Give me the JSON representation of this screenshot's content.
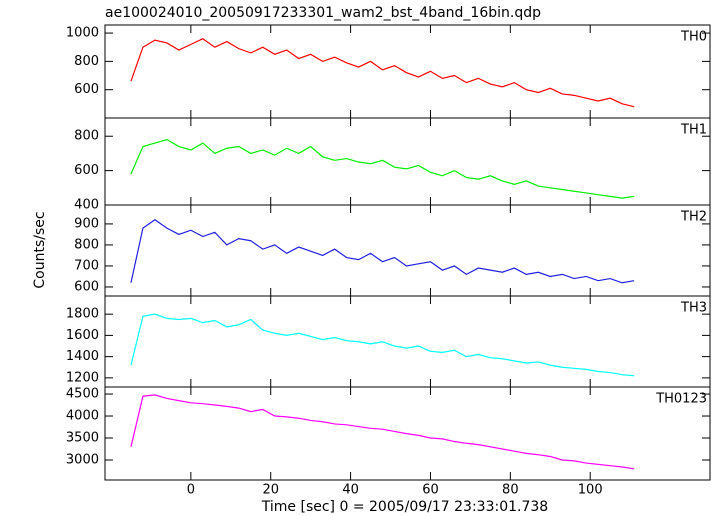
{
  "chart_data": [
    {
      "type": "line",
      "title": "ae100024010_20050917233301_wam2_bst_4band_16bin.qdp",
      "x": [
        -15,
        -12,
        -9,
        -6,
        -3,
        0,
        3,
        6,
        9,
        12,
        15,
        18,
        21,
        24,
        27,
        30,
        33,
        36,
        39,
        42,
        45,
        48,
        51,
        54,
        57,
        60,
        63,
        66,
        69,
        72,
        75,
        78,
        81,
        84,
        87,
        90,
        93,
        96,
        99,
        102,
        105,
        108,
        111
      ],
      "series": [
        {
          "name": "TH0",
          "color": "#ff0000",
          "values": [
            660,
            900,
            950,
            930,
            880,
            920,
            960,
            900,
            940,
            890,
            860,
            900,
            850,
            880,
            820,
            850,
            800,
            830,
            790,
            760,
            800,
            740,
            770,
            720,
            690,
            730,
            680,
            700,
            650,
            680,
            640,
            620,
            650,
            600,
            580,
            610,
            570,
            560,
            540,
            520,
            540,
            500,
            480
          ]
        }
      ],
      "xlim": [
        -21.5,
        130
      ],
      "xticks": [
        0,
        20,
        40,
        60,
        80,
        100
      ],
      "ylim": [
        400,
        1057
      ],
      "yticks": [
        600,
        800,
        1000
      ]
    },
    {
      "type": "line",
      "x": [
        -15,
        -12,
        -9,
        -6,
        -3,
        0,
        3,
        6,
        9,
        12,
        15,
        18,
        21,
        24,
        27,
        30,
        33,
        36,
        39,
        42,
        45,
        48,
        51,
        54,
        57,
        60,
        63,
        66,
        69,
        72,
        75,
        78,
        81,
        84,
        87,
        90,
        93,
        96,
        99,
        102,
        105,
        108,
        111
      ],
      "series": [
        {
          "name": "TH1",
          "color": "#00ee00",
          "values": [
            580,
            740,
            760,
            780,
            740,
            720,
            760,
            700,
            730,
            740,
            700,
            720,
            690,
            730,
            700,
            740,
            680,
            660,
            670,
            650,
            640,
            660,
            620,
            610,
            630,
            590,
            570,
            600,
            560,
            550,
            570,
            540,
            520,
            540,
            510,
            500,
            490,
            480,
            470,
            460,
            450,
            440,
            450
          ]
        }
      ],
      "xlim": [
        -21.5,
        130
      ],
      "xticks": [
        0,
        20,
        40,
        60,
        80,
        100
      ],
      "ylim": [
        400,
        906
      ],
      "yticks": [
        400,
        600,
        800
      ]
    },
    {
      "type": "line",
      "y_label": "Counts/sec",
      "x": [
        -15,
        -12,
        -9,
        -6,
        -3,
        0,
        3,
        6,
        9,
        12,
        15,
        18,
        21,
        24,
        27,
        30,
        33,
        36,
        39,
        42,
        45,
        48,
        51,
        54,
        57,
        60,
        63,
        66,
        69,
        72,
        75,
        78,
        81,
        84,
        87,
        90,
        93,
        96,
        99,
        102,
        105,
        108,
        111
      ],
      "series": [
        {
          "name": "TH2",
          "color": "#2020e0",
          "values": [
            620,
            880,
            920,
            880,
            850,
            870,
            840,
            860,
            800,
            830,
            820,
            780,
            800,
            760,
            790,
            770,
            750,
            780,
            740,
            730,
            760,
            720,
            740,
            700,
            710,
            720,
            680,
            700,
            660,
            690,
            680,
            670,
            690,
            660,
            670,
            650,
            660,
            640,
            650,
            630,
            640,
            620,
            630
          ]
        }
      ],
      "xlim": [
        -21.5,
        130
      ],
      "xticks": [
        0,
        20,
        40,
        60,
        80,
        100
      ],
      "ylim": [
        557,
        990
      ],
      "yticks": [
        600,
        700,
        800,
        900
      ]
    },
    {
      "type": "line",
      "x": [
        -15,
        -12,
        -9,
        -6,
        -3,
        0,
        3,
        6,
        9,
        12,
        15,
        18,
        21,
        24,
        27,
        30,
        33,
        36,
        39,
        42,
        45,
        48,
        51,
        54,
        57,
        60,
        63,
        66,
        69,
        72,
        75,
        78,
        81,
        84,
        87,
        90,
        93,
        96,
        99,
        102,
        105,
        108,
        111
      ],
      "series": [
        {
          "name": "TH3",
          "color": "#00ffff",
          "values": [
            1320,
            1780,
            1800,
            1760,
            1750,
            1760,
            1720,
            1740,
            1680,
            1700,
            1750,
            1650,
            1620,
            1600,
            1620,
            1590,
            1560,
            1580,
            1550,
            1540,
            1520,
            1540,
            1500,
            1480,
            1500,
            1450,
            1440,
            1460,
            1400,
            1420,
            1390,
            1380,
            1360,
            1340,
            1350,
            1320,
            1300,
            1290,
            1280,
            1260,
            1250,
            1230,
            1220
          ]
        }
      ],
      "xlim": [
        -21.5,
        130
      ],
      "xticks": [
        0,
        20,
        40,
        60,
        80,
        100
      ],
      "ylim": [
        1114,
        1971
      ],
      "yticks": [
        1200,
        1400,
        1600,
        1800
      ]
    },
    {
      "type": "line",
      "x_label": "Time [sec] 0 = 2005/09/17 23:33:01.738",
      "x": [
        -15,
        -12,
        -9,
        -6,
        -3,
        0,
        3,
        6,
        9,
        12,
        15,
        18,
        21,
        24,
        27,
        30,
        33,
        36,
        39,
        42,
        45,
        48,
        51,
        54,
        57,
        60,
        63,
        66,
        69,
        72,
        75,
        78,
        81,
        84,
        87,
        90,
        93,
        96,
        99,
        102,
        105,
        108,
        111
      ],
      "series": [
        {
          "name": "TH0123",
          "color": "#ff00ff",
          "values": [
            3300,
            4450,
            4480,
            4400,
            4350,
            4300,
            4280,
            4250,
            4220,
            4180,
            4100,
            4150,
            4000,
            3980,
            3950,
            3900,
            3870,
            3820,
            3800,
            3760,
            3720,
            3700,
            3650,
            3600,
            3560,
            3500,
            3480,
            3420,
            3380,
            3350,
            3300,
            3250,
            3200,
            3150,
            3120,
            3080,
            3000,
            2980,
            2930,
            2900,
            2870,
            2840,
            2800
          ]
        }
      ],
      "xlim": [
        -21.5,
        130
      ],
      "xticks": [
        0,
        20,
        40,
        60,
        80,
        100
      ],
      "ylim": [
        2545,
        4660
      ],
      "yticks": [
        3000,
        3500,
        4000,
        4500
      ]
    }
  ]
}
